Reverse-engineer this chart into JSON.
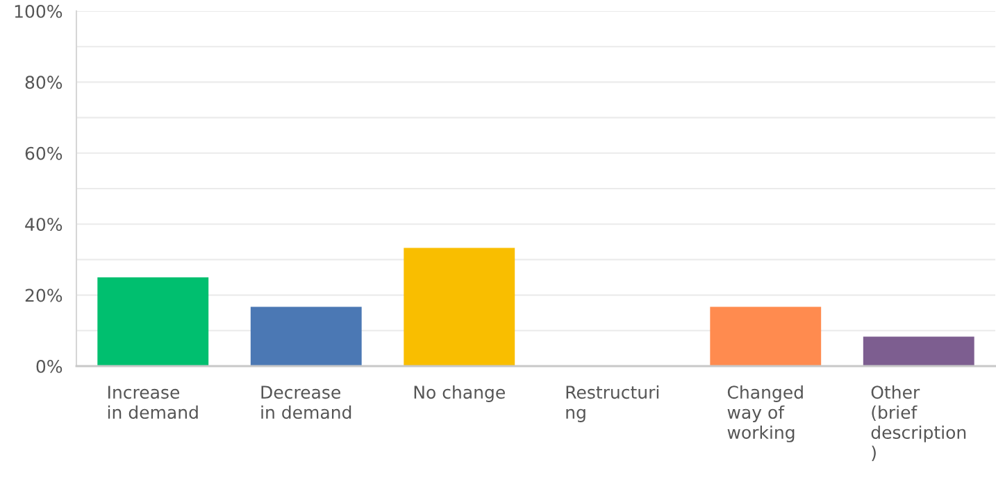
{
  "chart_data": {
    "type": "bar",
    "categories": [
      "Increase\nin demand",
      "Decrease\nin demand",
      "No change",
      "Restructuri\nng",
      "Changed\nway of\nworking",
      "Other\n(brief\ndescription\n)"
    ],
    "values": [
      25,
      16.7,
      33.3,
      0,
      16.7,
      8.3
    ],
    "colors": [
      "#00bf6f",
      "#4b78b4",
      "#f9be00",
      "#7f7f7f",
      "#ff8b4f",
      "#7d5e90"
    ],
    "ylim": [
      0,
      100
    ],
    "yticks": [
      {
        "value": 0,
        "label": "0%"
      },
      {
        "value": 10,
        "label": null
      },
      {
        "value": 20,
        "label": "20%"
      },
      {
        "value": 30,
        "label": null
      },
      {
        "value": 40,
        "label": "40%"
      },
      {
        "value": 50,
        "label": null
      },
      {
        "value": 60,
        "label": "60%"
      },
      {
        "value": 70,
        "label": null
      },
      {
        "value": 80,
        "label": "80%"
      },
      {
        "value": 90,
        "label": null
      },
      {
        "value": 100,
        "label": "100%"
      }
    ],
    "grid": "y"
  }
}
